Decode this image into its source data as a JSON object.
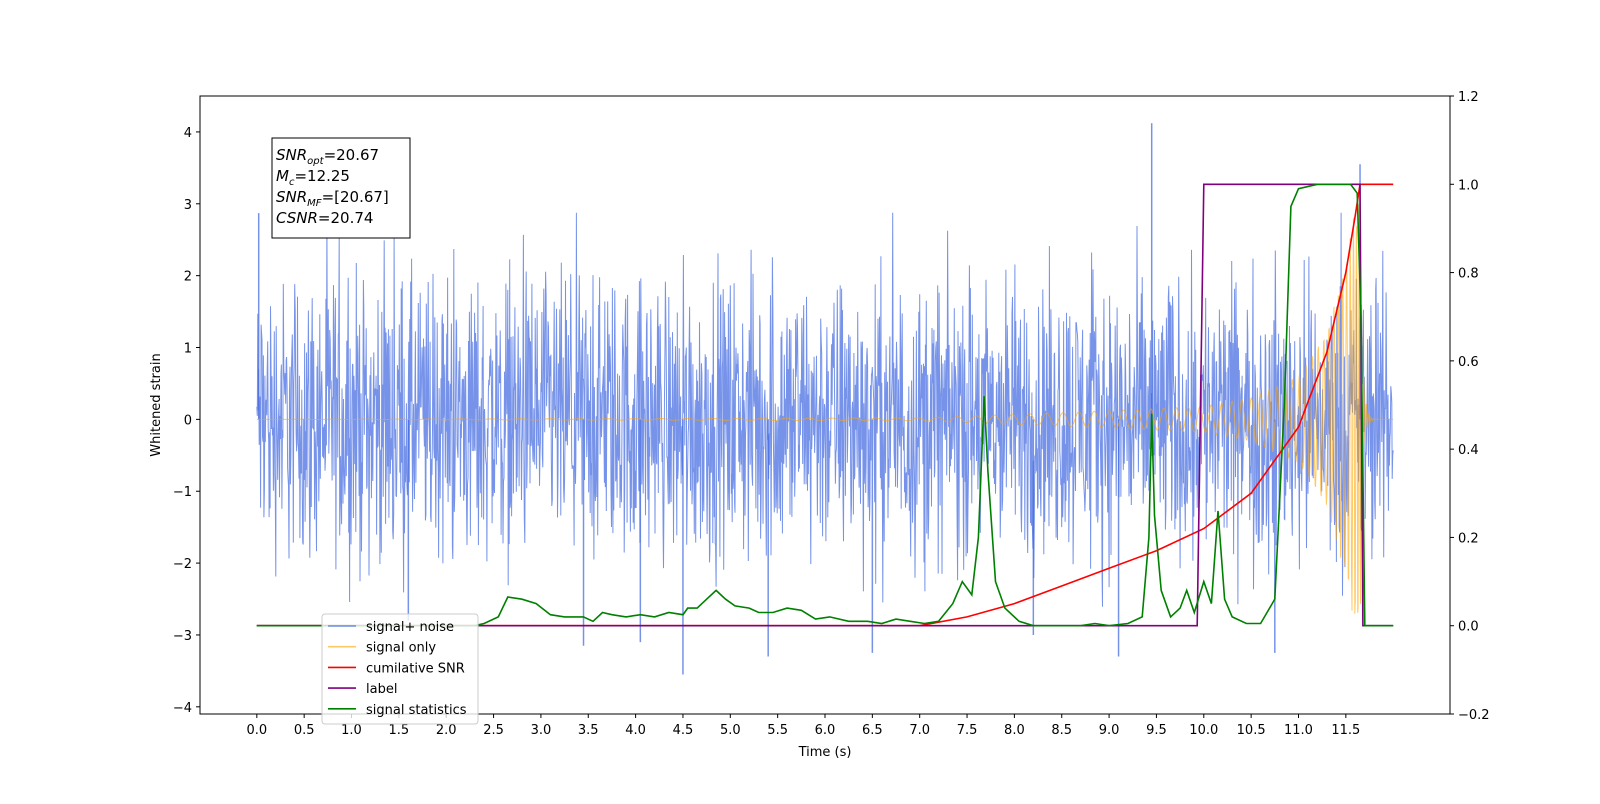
{
  "chart_data": {
    "type": "line",
    "xlabel": "Time (s)",
    "ylabel_left": "Whitened strain",
    "ylabel_right": "",
    "xlim": [
      -0.6,
      12.6
    ],
    "ylim_left": [
      -4.1,
      4.5
    ],
    "ylim_right": [
      -0.2,
      1.2
    ],
    "x_ticks": [
      0.0,
      0.5,
      1.0,
      1.5,
      2.0,
      2.5,
      3.0,
      3.5,
      4.0,
      4.5,
      5.0,
      5.5,
      6.0,
      6.5,
      7.0,
      7.5,
      8.0,
      8.5,
      9.0,
      9.5,
      10.0,
      10.5,
      11.0,
      11.5
    ],
    "x_tick_labels": [
      "0.0",
      "0.5",
      "1.0",
      "1.5",
      "2.0",
      "2.5",
      "3.0",
      "3.5",
      "4.0",
      "4.5",
      "5.0",
      "5.5",
      "6.0",
      "6.5",
      "7.0",
      "7.5",
      "8.0",
      "8.5",
      "9.0",
      "9.5",
      "10.0",
      "10.5",
      "11.0",
      "11.5"
    ],
    "left_ticks": [
      -4,
      -3,
      -2,
      -1,
      0,
      1,
      2,
      3,
      4
    ],
    "left_tick_labels": [
      "−4",
      "−3",
      "−2",
      "−1",
      "0",
      "1",
      "2",
      "3",
      "4"
    ],
    "right_ticks": [
      -0.2,
      0.0,
      0.2,
      0.4,
      0.6,
      0.8,
      1.0,
      1.2
    ],
    "right_tick_labels": [
      "−0.2",
      "0.0",
      "0.2",
      "0.4",
      "0.6",
      "0.8",
      "1.0",
      "1.2"
    ],
    "grid": false,
    "legend_position": "lower-left",
    "annotation": {
      "lines": [
        {
          "base": "SNR",
          "sub": "opt",
          "rest": "=20.67"
        },
        {
          "base": "M",
          "sub": "c",
          "rest": "=12.25"
        },
        {
          "base": "SNR",
          "sub": "MF",
          "rest": "=[20.67]"
        },
        {
          "base": "CSNR",
          "sub": "",
          "rest": "=20.74"
        }
      ]
    },
    "series": [
      {
        "name": "signal+ noise",
        "color": "#4169e1",
        "axis": "left",
        "kind": "noise",
        "x_range": [
          0.0,
          12.0
        ],
        "envelope": [
          -2.3,
          2.3
        ],
        "spikes": [
          [
            0.02,
            2.87
          ],
          [
            9.45,
            4.12
          ],
          [
            11.65,
            3.55
          ],
          [
            4.5,
            -3.55
          ],
          [
            10.75,
            -3.25
          ],
          [
            6.5,
            -3.25
          ],
          [
            3.45,
            -3.15
          ],
          [
            4.05,
            -3.1
          ],
          [
            5.4,
            -3.3
          ],
          [
            9.1,
            -3.3
          ],
          [
            8.2,
            -3.0
          ],
          [
            1.6,
            -2.8
          ]
        ]
      },
      {
        "name": "signal only",
        "color": "#ffa500",
        "axis": "left",
        "kind": "chirp",
        "x_range": [
          0.0,
          12.0
        ],
        "merger": 11.65,
        "amplitude": [
          [
            0.0,
            0.0
          ],
          [
            7.0,
            0.02
          ],
          [
            8.0,
            0.07
          ],
          [
            9.0,
            0.12
          ],
          [
            10.0,
            0.18
          ],
          [
            10.5,
            0.3
          ],
          [
            11.0,
            0.6
          ],
          [
            11.3,
            1.2
          ],
          [
            11.5,
            2.2
          ],
          [
            11.6,
            3.0
          ],
          [
            11.65,
            3.2
          ]
        ]
      },
      {
        "name": "cumilative SNR",
        "color": "#ff0000",
        "axis": "right",
        "points": [
          [
            0.0,
            0.0
          ],
          [
            7.0,
            0.0
          ],
          [
            7.5,
            0.02
          ],
          [
            8.0,
            0.05
          ],
          [
            8.5,
            0.09
          ],
          [
            9.0,
            0.13
          ],
          [
            9.5,
            0.17
          ],
          [
            10.0,
            0.22
          ],
          [
            10.5,
            0.3
          ],
          [
            11.0,
            0.45
          ],
          [
            11.3,
            0.62
          ],
          [
            11.5,
            0.8
          ],
          [
            11.6,
            0.93
          ],
          [
            11.65,
            1.0
          ],
          [
            12.0,
            1.0
          ]
        ]
      },
      {
        "name": "label",
        "color": "#800080",
        "axis": "right",
        "points": [
          [
            0.0,
            0.0
          ],
          [
            9.93,
            0.0
          ],
          [
            10.0,
            1.0
          ],
          [
            11.65,
            1.0
          ],
          [
            11.68,
            0.0
          ],
          [
            12.0,
            0.0
          ]
        ]
      },
      {
        "name": "signal statistics",
        "color": "#008000",
        "axis": "right",
        "points": [
          [
            0.0,
            0.0
          ],
          [
            2.3,
            0.0
          ],
          [
            2.4,
            0.005
          ],
          [
            2.55,
            0.02
          ],
          [
            2.65,
            0.065
          ],
          [
            2.8,
            0.06
          ],
          [
            2.95,
            0.05
          ],
          [
            3.1,
            0.025
          ],
          [
            3.25,
            0.02
          ],
          [
            3.45,
            0.02
          ],
          [
            3.55,
            0.01
          ],
          [
            3.65,
            0.03
          ],
          [
            3.75,
            0.025
          ],
          [
            3.9,
            0.02
          ],
          [
            4.05,
            0.025
          ],
          [
            4.2,
            0.02
          ],
          [
            4.35,
            0.03
          ],
          [
            4.5,
            0.025
          ],
          [
            4.55,
            0.04
          ],
          [
            4.65,
            0.04
          ],
          [
            4.75,
            0.06
          ],
          [
            4.85,
            0.08
          ],
          [
            4.95,
            0.06
          ],
          [
            5.05,
            0.045
          ],
          [
            5.2,
            0.04
          ],
          [
            5.3,
            0.03
          ],
          [
            5.45,
            0.03
          ],
          [
            5.6,
            0.04
          ],
          [
            5.75,
            0.035
          ],
          [
            5.9,
            0.015
          ],
          [
            6.05,
            0.02
          ],
          [
            6.25,
            0.01
          ],
          [
            6.45,
            0.01
          ],
          [
            6.6,
            0.005
          ],
          [
            6.75,
            0.015
          ],
          [
            6.9,
            0.01
          ],
          [
            7.05,
            0.005
          ],
          [
            7.2,
            0.01
          ],
          [
            7.35,
            0.05
          ],
          [
            7.45,
            0.1
          ],
          [
            7.55,
            0.07
          ],
          [
            7.62,
            0.2
          ],
          [
            7.68,
            0.52
          ],
          [
            7.72,
            0.35
          ],
          [
            7.8,
            0.1
          ],
          [
            7.9,
            0.04
          ],
          [
            8.05,
            0.01
          ],
          [
            8.2,
            0.0
          ],
          [
            8.7,
            0.0
          ],
          [
            8.85,
            0.005
          ],
          [
            9.0,
            0.0
          ],
          [
            9.2,
            0.005
          ],
          [
            9.35,
            0.02
          ],
          [
            9.42,
            0.2
          ],
          [
            9.45,
            0.48
          ],
          [
            9.48,
            0.25
          ],
          [
            9.55,
            0.08
          ],
          [
            9.65,
            0.02
          ],
          [
            9.75,
            0.04
          ],
          [
            9.82,
            0.08
          ],
          [
            9.9,
            0.03
          ],
          [
            10.0,
            0.1
          ],
          [
            10.08,
            0.05
          ],
          [
            10.15,
            0.26
          ],
          [
            10.22,
            0.06
          ],
          [
            10.3,
            0.02
          ],
          [
            10.45,
            0.005
          ],
          [
            10.6,
            0.005
          ],
          [
            10.75,
            0.06
          ],
          [
            10.85,
            0.5
          ],
          [
            10.92,
            0.95
          ],
          [
            11.0,
            0.99
          ],
          [
            11.2,
            1.0
          ],
          [
            11.55,
            1.0
          ],
          [
            11.62,
            0.98
          ],
          [
            11.66,
            0.7
          ],
          [
            11.7,
            0.0
          ],
          [
            12.0,
            0.0
          ]
        ]
      }
    ]
  }
}
